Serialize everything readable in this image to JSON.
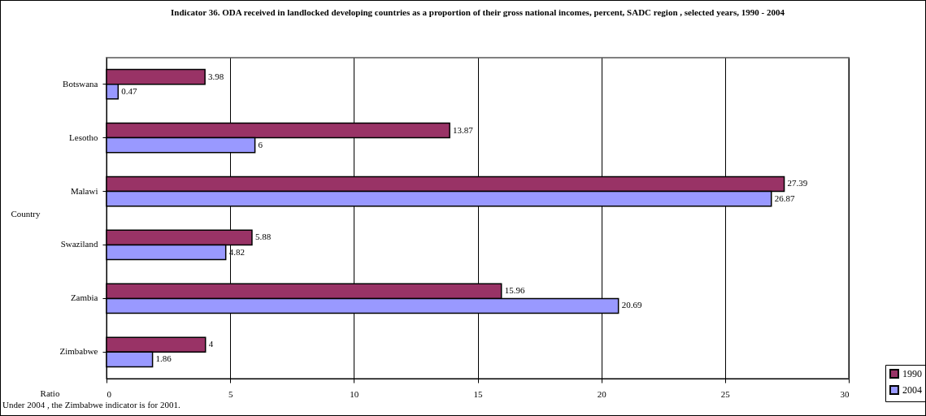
{
  "chart_data": {
    "type": "bar",
    "orientation": "horizontal",
    "title": "Indicator 36. ODA received in landlocked developing countries as a proportion of their gross national incomes,  percent,  SADC region , selected years, 1990 - 2004",
    "xlabel": "Ratio",
    "ylabel": "Country",
    "categories": [
      "Botswana",
      "Lesotho",
      "Malawi",
      "Swaziland",
      "Zambia",
      "Zimbabwe"
    ],
    "series": [
      {
        "name": "1990",
        "color": "#993366",
        "values": [
          3.98,
          13.87,
          27.39,
          5.88,
          15.96,
          4
        ]
      },
      {
        "name": "2004",
        "color": "#9999ff",
        "values": [
          0.47,
          6,
          26.87,
          4.82,
          20.69,
          1.86
        ]
      }
    ],
    "xlim": [
      0,
      30
    ],
    "xticks": [
      0,
      5,
      10,
      15,
      20,
      25,
      30
    ],
    "grid": "x",
    "legend": "bottom right",
    "data_labels": true,
    "annotations": [
      "Under 2004 , the  Zimbabwe  indicator  is for  2001."
    ]
  }
}
